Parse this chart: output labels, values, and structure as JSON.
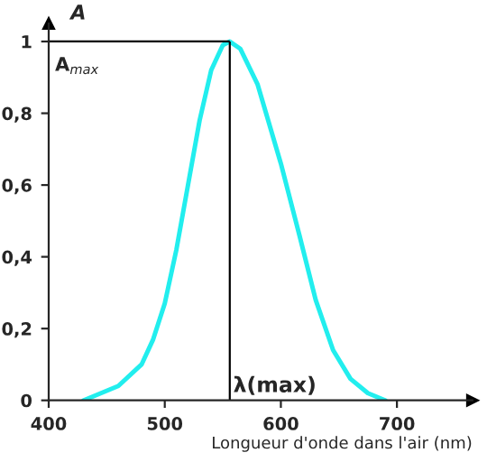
{
  "chart_data": {
    "type": "line",
    "ylabel": "A",
    "xlabel": "Longueur d'onde dans l'air (nm)",
    "x": [
      430,
      460,
      480,
      490,
      500,
      510,
      520,
      530,
      540,
      550,
      556,
      565,
      580,
      600,
      616,
      630,
      645,
      660,
      675,
      690
    ],
    "series": [
      {
        "color": "#22eeee",
        "values": [
          0.0,
          0.04,
          0.1,
          0.17,
          0.27,
          0.42,
          0.6,
          0.78,
          0.92,
          0.99,
          1.0,
          0.98,
          0.88,
          0.66,
          0.46,
          0.28,
          0.14,
          0.06,
          0.02,
          0.0
        ]
      }
    ],
    "xlim": [
      400,
      765
    ],
    "ylim": [
      0,
      1.05
    ],
    "xticks": [
      400,
      500,
      600,
      700
    ],
    "yticks": [
      0,
      {
        "value": 0.2,
        "label": "0,2"
      },
      {
        "value": 0.4,
        "label": "0,4"
      },
      {
        "value": 0.6,
        "label": "0,6"
      },
      {
        "value": 0.8,
        "label": "0,8"
      },
      1
    ],
    "ref_lines": [
      {
        "axis": "y",
        "value": 1,
        "label": "A$_{max}$",
        "color": "#000000"
      },
      {
        "axis": "x",
        "value": 556,
        "label": "λ(max)",
        "color": "#000000"
      }
    ],
    "grid": false
  }
}
